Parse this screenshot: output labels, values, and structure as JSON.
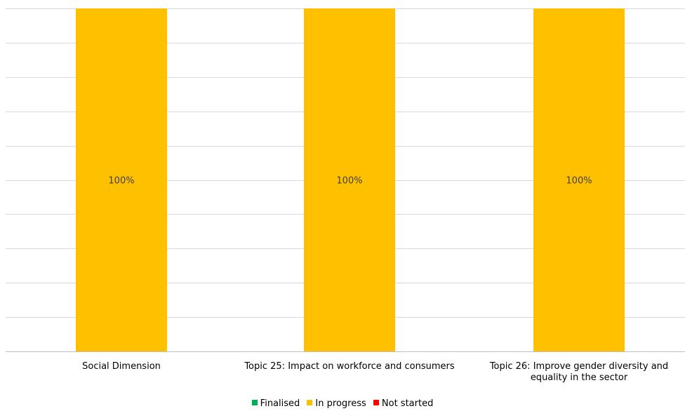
{
  "chart_data": {
    "type": "bar",
    "stacked": true,
    "percent_stacked": true,
    "categories": [
      "Social Dimension",
      "Topic 25: Impact on workforce and consumers",
      "Topic 26: Improve gender diversity and equality in the sector"
    ],
    "series": [
      {
        "name": "Finalised",
        "color": "#00b050",
        "values": [
          0,
          0,
          0
        ]
      },
      {
        "name": "In progress",
        "color": "#ffc000",
        "values": [
          100,
          100,
          100
        ],
        "data_labels": [
          "100%",
          "100%",
          "100%"
        ]
      },
      {
        "name": "Not started",
        "color": "#ff0000",
        "values": [
          0,
          0,
          0
        ]
      }
    ],
    "ylim": [
      0,
      100
    ],
    "grid": true,
    "legend_position": "bottom",
    "title": "",
    "xlabel": "",
    "ylabel": ""
  }
}
